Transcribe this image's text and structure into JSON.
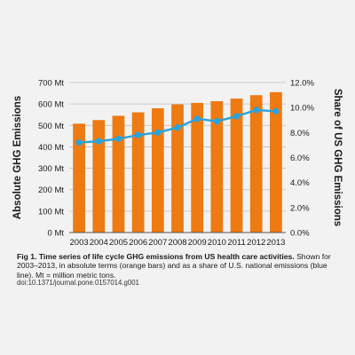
{
  "caption": {
    "title": "Fig 1. Time series of life cycle GHG emissions from US health care activities.",
    "text": "Shown for 2003–2013, in absolute terms (orange bars) and as a share of U.S. national emissions (blue line). Mt = million metric tons."
  },
  "doi": "doi:10.1371/journal.pone.0157014.g001",
  "colors": {
    "bar": "#ee7a12",
    "line": "#2aa3dc",
    "marker": "#2aa3dc",
    "grid": "#bdbdbd",
    "background": "#f2f2f2",
    "text": "#1a1a1a"
  },
  "chart_data": {
    "type": "bar",
    "categories": [
      "2003",
      "2004",
      "2005",
      "2006",
      "2007",
      "2008",
      "2009",
      "2010",
      "2011",
      "2012",
      "2013"
    ],
    "series": [
      {
        "type": "bar",
        "axis": "left",
        "values": [
          508,
          525,
          545,
          561,
          580,
          598,
          605,
          613,
          625,
          641,
          655
        ]
      },
      {
        "type": "line",
        "axis": "right",
        "values": [
          7.2,
          7.3,
          7.5,
          7.8,
          8.0,
          8.4,
          9.1,
          8.9,
          9.3,
          9.8,
          9.7
        ]
      }
    ],
    "ylabel": "Absolute GHG Emissions",
    "ylabel_right": "Share of US GHG Emissions",
    "ylim": [
      0,
      700
    ],
    "ylim_right": [
      0,
      12
    ],
    "yticks": [
      "0 Mt",
      "100 Mt",
      "200 Mt",
      "300 Mt",
      "400 Mt",
      "500 Mt",
      "600 Mt",
      "700 Mt"
    ],
    "yticks_right": [
      "0.0%",
      "2.0%",
      "4.0%",
      "6.0%",
      "8.0%",
      "10.0%",
      "12.0%"
    ],
    "grid": true,
    "legend": "none"
  }
}
